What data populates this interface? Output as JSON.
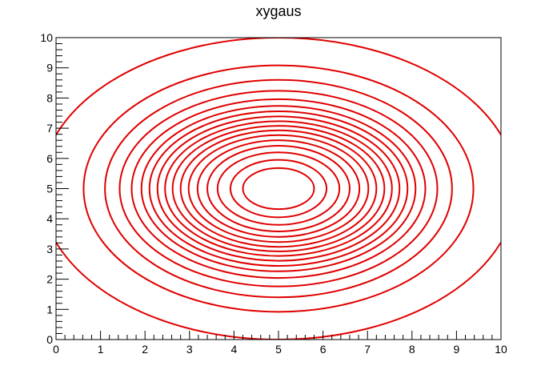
{
  "chart_data": {
    "type": "contour",
    "title": "xygaus",
    "xlabel": "",
    "ylabel": "",
    "xlim": [
      0,
      10
    ],
    "ylim": [
      0,
      10
    ],
    "xticks": [
      0,
      1,
      2,
      3,
      4,
      5,
      6,
      7,
      8,
      9,
      10
    ],
    "yticks": [
      0,
      1,
      2,
      3,
      4,
      5,
      6,
      7,
      8,
      9,
      10
    ],
    "grid": false,
    "line_color": "#e00000",
    "center": {
      "x": 5.0,
      "y": 5.0
    },
    "contours": [
      {
        "rx": 0.8,
        "ry": 0.68
      },
      {
        "rx": 1.08,
        "ry": 0.95
      },
      {
        "rx": 1.37,
        "ry": 1.2
      },
      {
        "rx": 1.6,
        "ry": 1.42
      },
      {
        "rx": 1.82,
        "ry": 1.6
      },
      {
        "rx": 2.02,
        "ry": 1.77
      },
      {
        "rx": 2.2,
        "ry": 1.93
      },
      {
        "rx": 2.38,
        "ry": 2.08
      },
      {
        "rx": 2.55,
        "ry": 2.23
      },
      {
        "rx": 2.72,
        "ry": 2.39
      },
      {
        "rx": 2.9,
        "ry": 2.56
      },
      {
        "rx": 3.08,
        "ry": 2.74
      },
      {
        "rx": 3.3,
        "ry": 2.96
      },
      {
        "rx": 3.57,
        "ry": 3.24
      },
      {
        "rx": 3.9,
        "ry": 3.6
      },
      {
        "rx": 4.38,
        "ry": 4.08
      },
      {
        "rx": 5.35,
        "ry": 5.0,
        "clipped": true
      }
    ]
  }
}
